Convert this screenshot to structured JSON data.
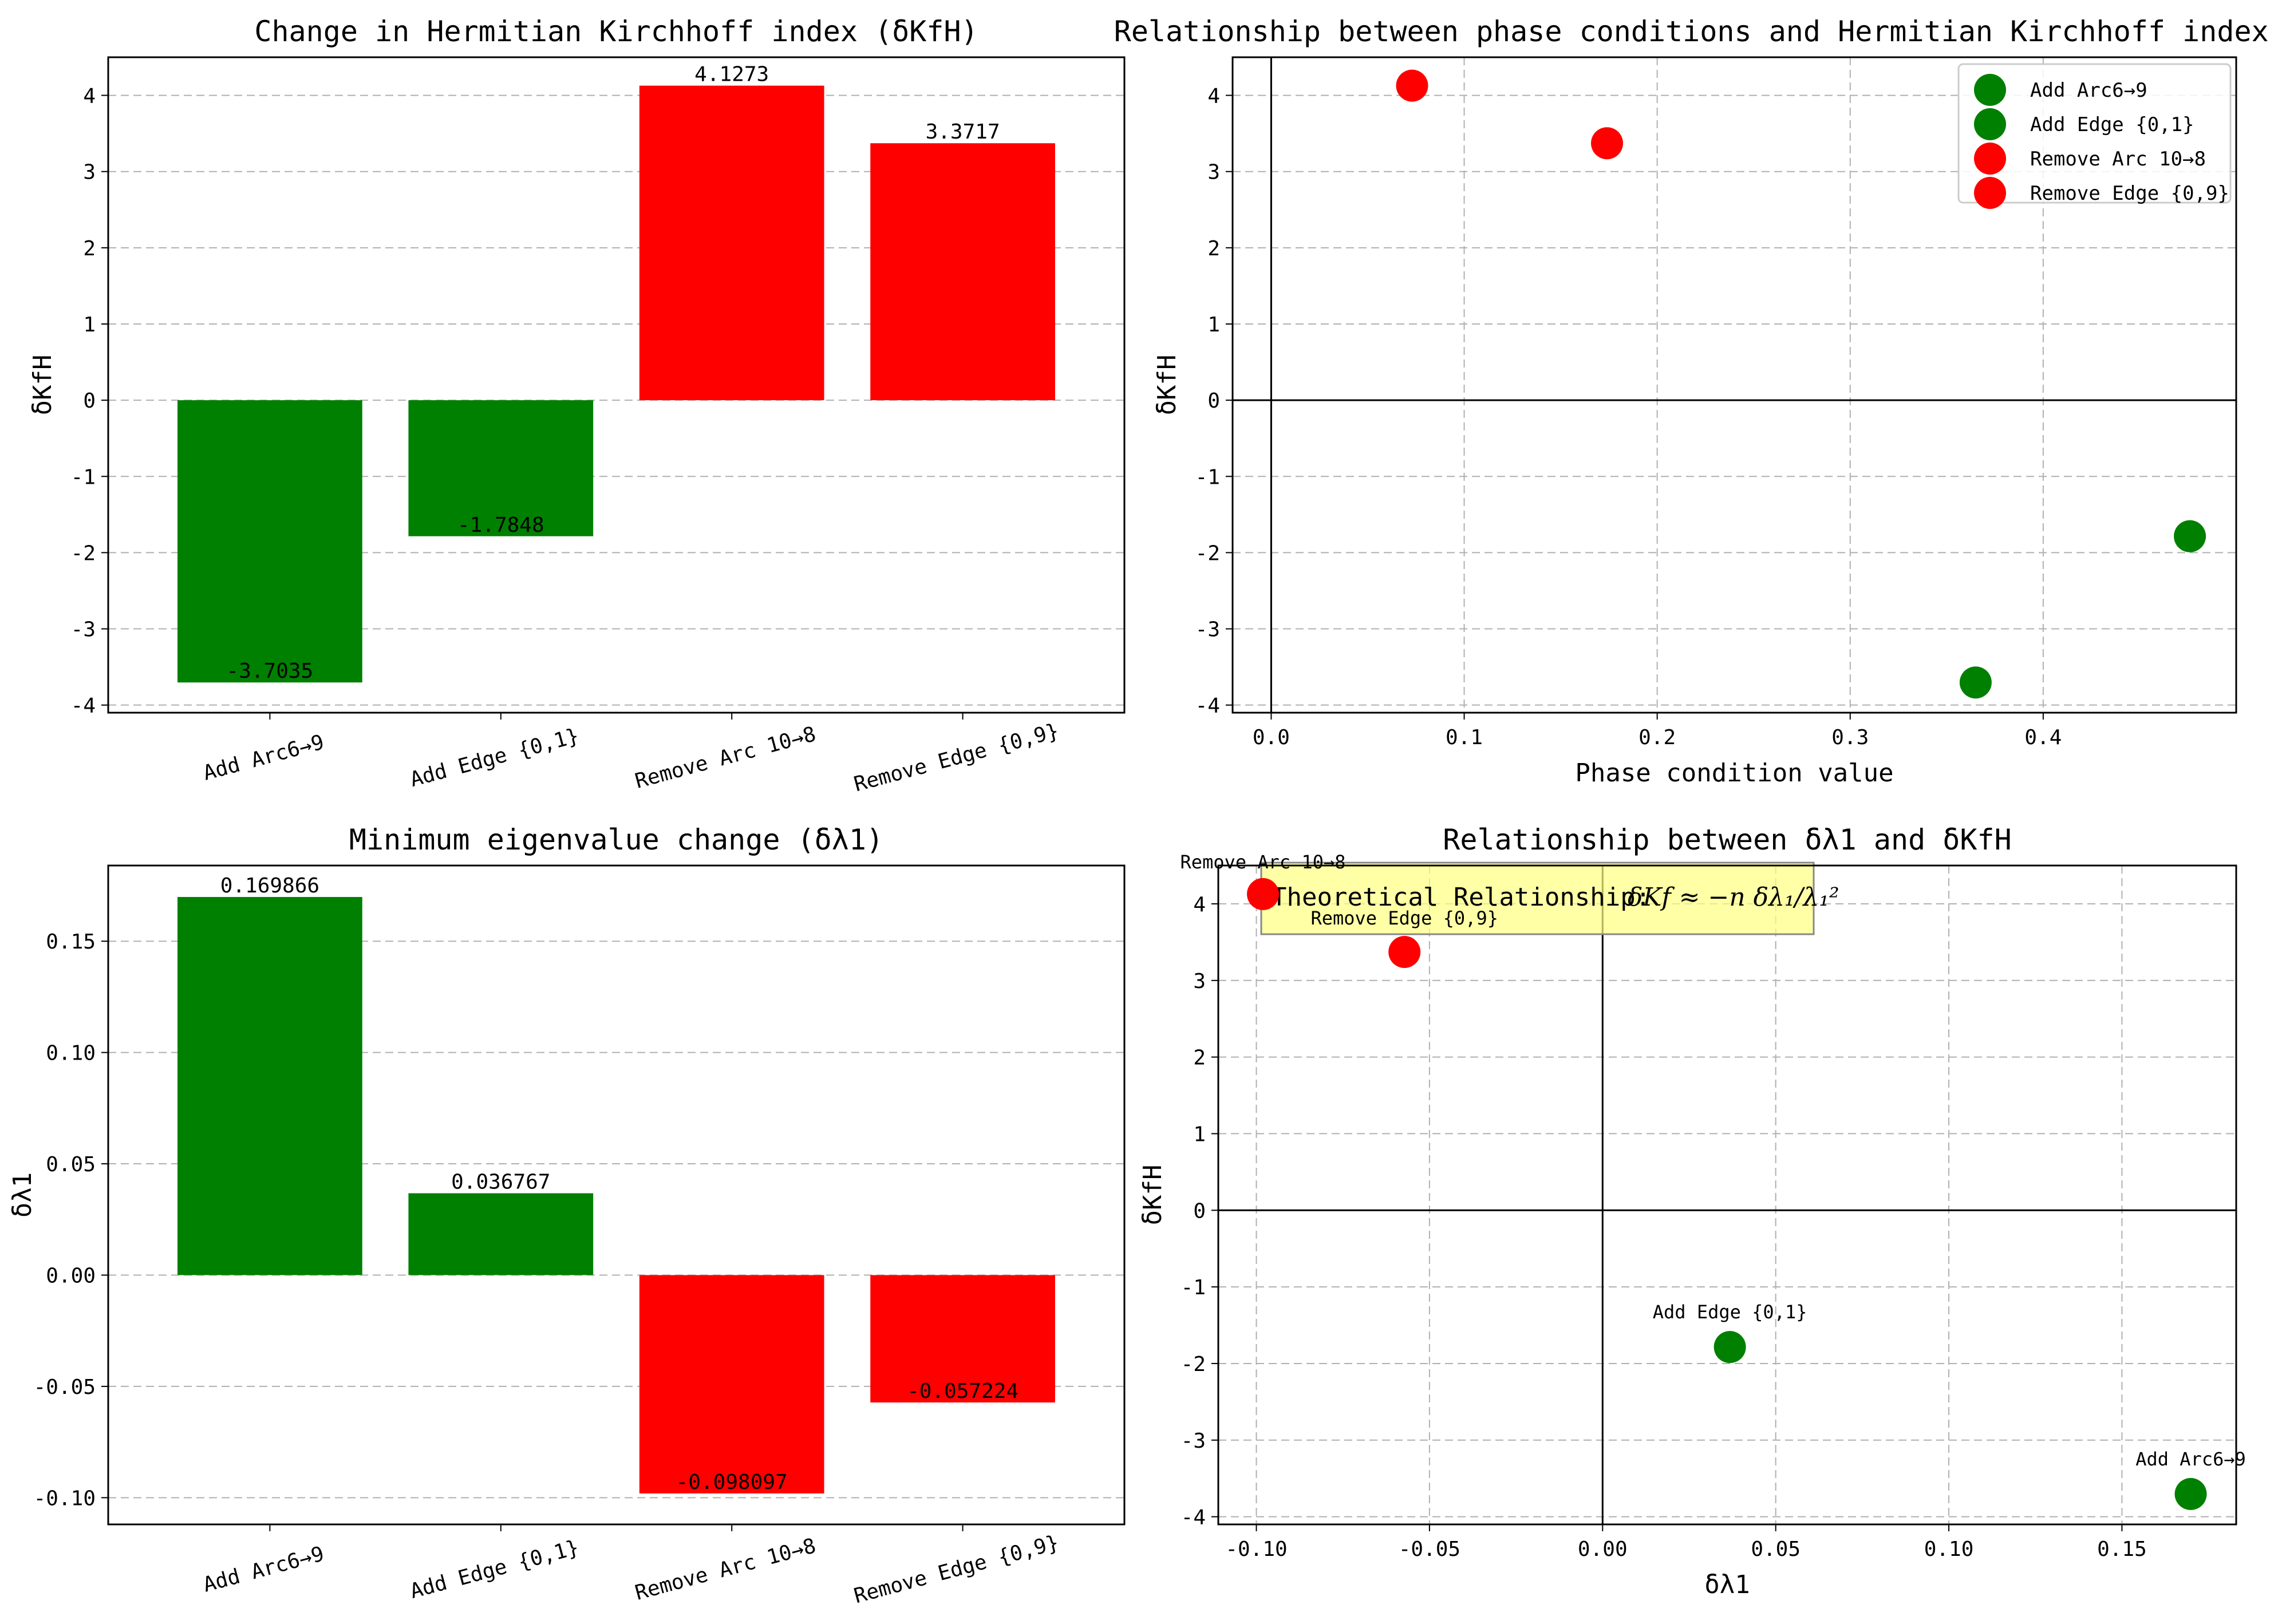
{
  "chart_data": [
    {
      "type": "bar",
      "title": "Change in Hermitian Kirchhoff index (δKfH)",
      "xlabel": "",
      "ylabel": "δKfH",
      "categories": [
        "Add Arc6→9",
        "Add Edge {0,1}",
        "Remove Arc 10→8",
        "Remove Edge {0,9}"
      ],
      "values": [
        -3.7035,
        -1.7848,
        4.1273,
        3.3717
      ],
      "data_labels": [
        "-3.7035",
        "-1.7848",
        "4.1273",
        "3.3717"
      ],
      "colors": [
        "#008000",
        "#008000",
        "#ff0000",
        "#ff0000"
      ],
      "ylim": [
        -4.1,
        4.5
      ],
      "yticks": [
        -4,
        -3,
        -2,
        -1,
        0,
        1,
        2,
        3,
        4
      ],
      "ytick_labels": [
        "-4",
        "-3",
        "-2",
        "-1",
        "0",
        "1",
        "2",
        "3",
        "4"
      ],
      "grid": true
    },
    {
      "type": "scatter",
      "title": "Relationship between phase conditions and Hermitian Kirchhoff index chan",
      "xlabel": "Phase condition value",
      "ylabel": "δKfH",
      "series": [
        {
          "name": "Add Arc6→9",
          "color": "#008000",
          "points": [
            [
              0.365,
              -3.7035
            ]
          ]
        },
        {
          "name": "Add Edge {0,1}",
          "color": "#008000",
          "points": [
            [
              0.476,
              -1.7848
            ]
          ]
        },
        {
          "name": "Remove Arc 10→8",
          "color": "#ff0000",
          "points": [
            [
              0.073,
              4.1273
            ]
          ]
        },
        {
          "name": "Remove Edge {0,9}",
          "color": "#ff0000",
          "points": [
            [
              0.174,
              3.3717
            ]
          ]
        }
      ],
      "xlim": [
        -0.02,
        0.5
      ],
      "ylim": [
        -4.1,
        4.5
      ],
      "xticks": [
        0.0,
        0.1,
        0.2,
        0.3,
        0.4
      ],
      "xtick_labels": [
        "0.0",
        "0.1",
        "0.2",
        "0.3",
        "0.4"
      ],
      "yticks": [
        -4,
        -3,
        -2,
        -1,
        0,
        1,
        2,
        3,
        4
      ],
      "ytick_labels": [
        "-4",
        "-3",
        "-2",
        "-1",
        "0",
        "1",
        "2",
        "3",
        "4"
      ],
      "legend_position": "top-right",
      "grid": true
    },
    {
      "type": "bar",
      "title": "Minimum eigenvalue change (δλ1)",
      "xlabel": "",
      "ylabel": "δλ1",
      "categories": [
        "Add Arc6→9",
        "Add Edge {0,1}",
        "Remove Arc 10→8",
        "Remove Edge {0,9}"
      ],
      "values": [
        0.169866,
        0.036767,
        -0.098097,
        -0.057224
      ],
      "data_labels": [
        "0.169866",
        "0.036767",
        "-0.098097",
        "-0.057224"
      ],
      "colors": [
        "#008000",
        "#008000",
        "#ff0000",
        "#ff0000"
      ],
      "ylim": [
        -0.112,
        0.184
      ],
      "yticks": [
        -0.1,
        -0.05,
        0.0,
        0.05,
        0.1,
        0.15
      ],
      "ytick_labels": [
        "-0.10",
        "-0.05",
        "0.00",
        "0.05",
        "0.10",
        "0.15"
      ],
      "grid": true
    },
    {
      "type": "scatter",
      "title": "Relationship between δλ1 and δKfH",
      "xlabel": "δλ1",
      "ylabel": "δKfH",
      "series": [
        {
          "name": "Add Arc6→9",
          "color": "#008000",
          "points": [
            [
              0.169866,
              -3.7035
            ]
          ]
        },
        {
          "name": "Add Edge {0,1}",
          "color": "#008000",
          "points": [
            [
              0.036767,
              -1.7848
            ]
          ]
        },
        {
          "name": "Remove Arc 10→8",
          "color": "#ff0000",
          "points": [
            [
              -0.098097,
              4.1273
            ]
          ]
        },
        {
          "name": "Remove Edge {0,9}",
          "color": "#ff0000",
          "points": [
            [
              -0.057224,
              3.3717
            ]
          ]
        }
      ],
      "point_labels": [
        "Add Arc6→9",
        "Add Edge {0,1}",
        "Remove Arc 10→8",
        "Remove Edge {0,9}"
      ],
      "xlim": [
        -0.111,
        0.183
      ],
      "ylim": [
        -4.1,
        4.5
      ],
      "xticks": [
        -0.1,
        -0.05,
        0.0,
        0.05,
        0.1,
        0.15
      ],
      "xtick_labels": [
        "-0.10",
        "-0.05",
        "0.00",
        "0.05",
        "0.10",
        "0.15"
      ],
      "yticks": [
        -4,
        -3,
        -2,
        -1,
        0,
        1,
        2,
        3,
        4
      ],
      "ytick_labels": [
        "-4",
        "-3",
        "-2",
        "-1",
        "0",
        "1",
        "2",
        "3",
        "4"
      ],
      "annotation_prefix": "Theoretical Relationship: ",
      "annotation_formula": "δKf ≈ −n δλ₁/λ₁²",
      "grid": true
    }
  ]
}
